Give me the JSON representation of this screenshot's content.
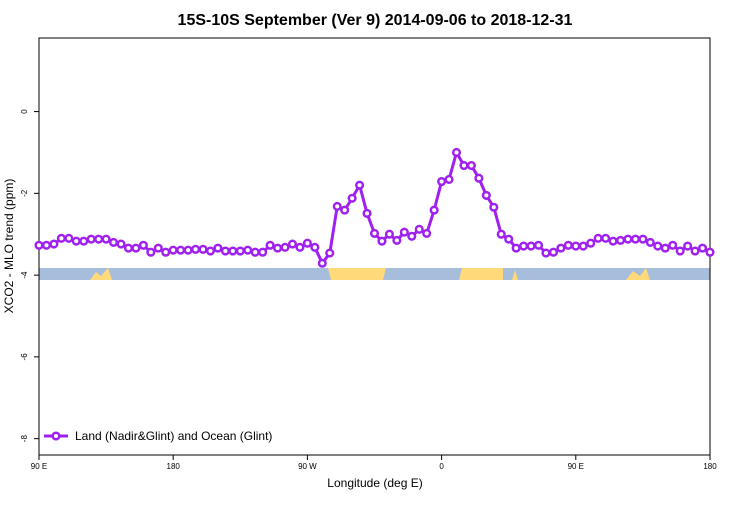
{
  "chart_data": {
    "type": "line",
    "title": "15S-10S September (Ver 9)   2014-09-06 to 2018-12-31",
    "x_label": "Longitude (deg E)",
    "y_label": "XCO2 - MLO trend (ppm)",
    "xlim": [
      90,
      540
    ],
    "ylim": [
      -8.4,
      1.8
    ],
    "xticks": [
      {
        "value": 90,
        "label": "90 E"
      },
      {
        "value": 180,
        "label": "180"
      },
      {
        "value": 270,
        "label": "90 W"
      },
      {
        "value": 360,
        "label": "0"
      },
      {
        "value": 450,
        "label": "90 E"
      },
      {
        "value": 540,
        "label": "180"
      }
    ],
    "yticks": [
      0,
      -2,
      -4,
      -6,
      -8
    ],
    "legend": "bottom-left",
    "x": [
      90,
      95,
      100,
      105,
      110,
      115,
      120,
      125,
      130,
      135,
      140,
      145,
      150,
      155,
      160,
      165,
      170,
      175,
      180,
      185,
      190,
      195,
      200,
      205,
      210,
      215,
      220,
      225,
      230,
      235,
      240,
      245,
      250,
      255,
      260,
      265,
      270,
      275,
      280,
      285,
      290,
      295,
      300,
      305,
      310,
      315,
      320,
      325,
      330,
      335,
      340,
      345,
      350,
      355,
      360,
      365,
      370,
      375,
      380,
      385,
      390,
      395,
      400,
      405,
      410,
      415,
      420,
      425,
      430,
      435,
      440,
      445,
      450,
      455,
      460,
      465,
      470,
      475,
      480,
      485,
      490,
      495,
      500,
      505,
      510,
      515,
      520,
      525,
      530,
      535,
      540
    ],
    "series": [
      {
        "name": "Land (Nadir&Glint) and Ocean (Glint)",
        "color": "#a020f0",
        "values": [
          -3.27,
          -3.27,
          -3.24,
          -3.1,
          -3.1,
          -3.17,
          -3.17,
          -3.12,
          -3.12,
          -3.12,
          -3.2,
          -3.24,
          -3.34,
          -3.34,
          -3.27,
          -3.44,
          -3.34,
          -3.44,
          -3.39,
          -3.39,
          -3.39,
          -3.37,
          -3.37,
          -3.41,
          -3.34,
          -3.41,
          -3.41,
          -3.41,
          -3.39,
          -3.44,
          -3.44,
          -3.27,
          -3.34,
          -3.32,
          -3.24,
          -3.32,
          -3.22,
          -3.32,
          -3.71,
          -3.46,
          -2.32,
          -2.41,
          -2.12,
          -1.8,
          -2.49,
          -2.98,
          -3.17,
          -3.0,
          -3.15,
          -2.95,
          -3.05,
          -2.88,
          -2.98,
          -2.41,
          -1.71,
          -1.66,
          -1.0,
          -1.32,
          -1.32,
          -1.63,
          -2.05,
          -2.34,
          -3.0,
          -3.12,
          -3.34,
          -3.29,
          -3.29,
          -3.27,
          -3.46,
          -3.44,
          -3.34,
          -3.27,
          -3.29,
          -3.29,
          -3.22,
          -3.1,
          -3.1,
          -3.17,
          -3.15,
          -3.12,
          -3.12,
          -3.12,
          -3.2,
          -3.29,
          -3.34,
          -3.27,
          -3.41,
          -3.29,
          -3.41,
          -3.34,
          -3.44
        ]
      }
    ]
  }
}
